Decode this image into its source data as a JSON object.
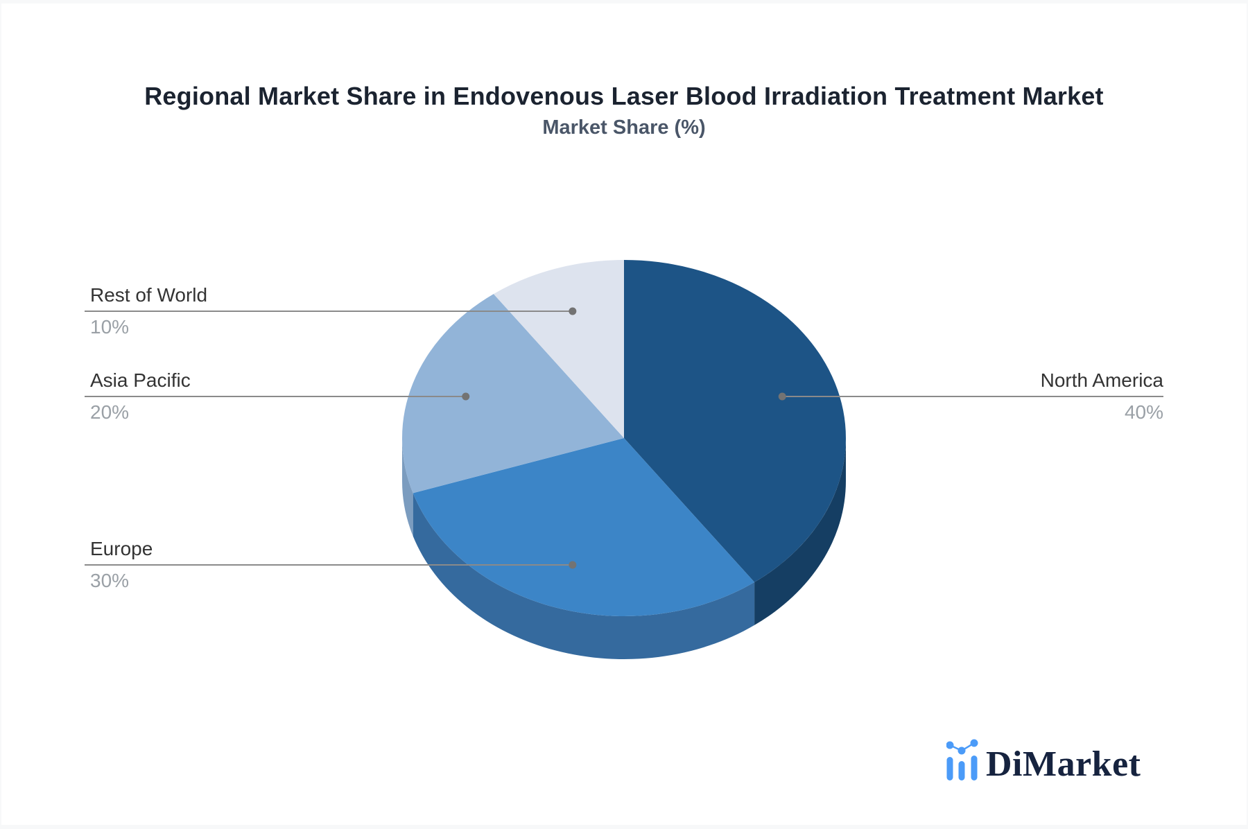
{
  "title": "Regional Market Share in Endovenous Laser Blood Irradiation Treatment Market",
  "subtitle": "Market Share (%)",
  "logo": {
    "text": "DiMarket",
    "icon": "bar-line-chart-icon",
    "icon_color": "#4b9bf8",
    "text_color": "#16233f"
  },
  "chart_data": {
    "type": "pie",
    "title": "Regional Market Share in Endovenous Laser Blood Irradiation Treatment Market",
    "subtitle": "Market Share (%)",
    "unit": "%",
    "effect": "3d",
    "start_angle_deg": 0,
    "clockwise": true,
    "legend": "leader-line-labels",
    "categories": [
      "North America",
      "Europe",
      "Asia Pacific",
      "Rest of World"
    ],
    "values": [
      40,
      30,
      20,
      10
    ],
    "slices": [
      {
        "label": "North America",
        "value": 40,
        "display": "40%",
        "color": "#1d5486",
        "side_color": "#153e63",
        "label_side": "right"
      },
      {
        "label": "Europe",
        "value": 30,
        "display": "30%",
        "color": "#3c85c7",
        "side_color": "#356a9e",
        "label_side": "left"
      },
      {
        "label": "Asia Pacific",
        "value": 20,
        "display": "20%",
        "color": "#92b4d8",
        "side_color": "#7b9cbf",
        "label_side": "left"
      },
      {
        "label": "Rest of World",
        "value": 10,
        "display": "10%",
        "color": "#dde3ee",
        "side_color": "#c3cedd",
        "label_side": "left"
      }
    ],
    "style": {
      "leader_line_color": "#8a8a8a",
      "leader_dot_color": "#737373",
      "label_text_color": "#333333",
      "value_text_color": "#9aa0a6"
    }
  }
}
